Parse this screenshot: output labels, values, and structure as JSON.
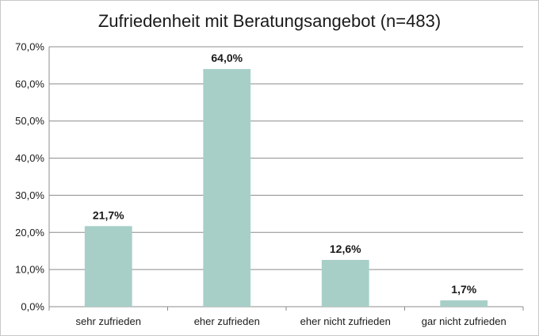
{
  "chart_data": {
    "type": "bar",
    "title": "Zufriedenheit mit Beratungsangebot (n=483)",
    "categories": [
      "sehr zufrieden",
      "eher zufrieden",
      "eher nicht zufrieden",
      "gar nicht zufrieden"
    ],
    "values": [
      21.7,
      64.0,
      12.6,
      1.7
    ],
    "data_labels": [
      "21,7%",
      "64,0%",
      "12,6%",
      "1,7%"
    ],
    "ylim": [
      0,
      70
    ],
    "yticks": [
      0,
      10,
      20,
      30,
      40,
      50,
      60,
      70
    ],
    "ytick_labels": [
      "0,0%",
      "10,0%",
      "20,0%",
      "30,0%",
      "40,0%",
      "50,0%",
      "60,0%",
      "70,0%"
    ],
    "xlabel": "",
    "ylabel": "",
    "grid": true,
    "bar_color": "#a7cfc8",
    "legend": "none"
  }
}
